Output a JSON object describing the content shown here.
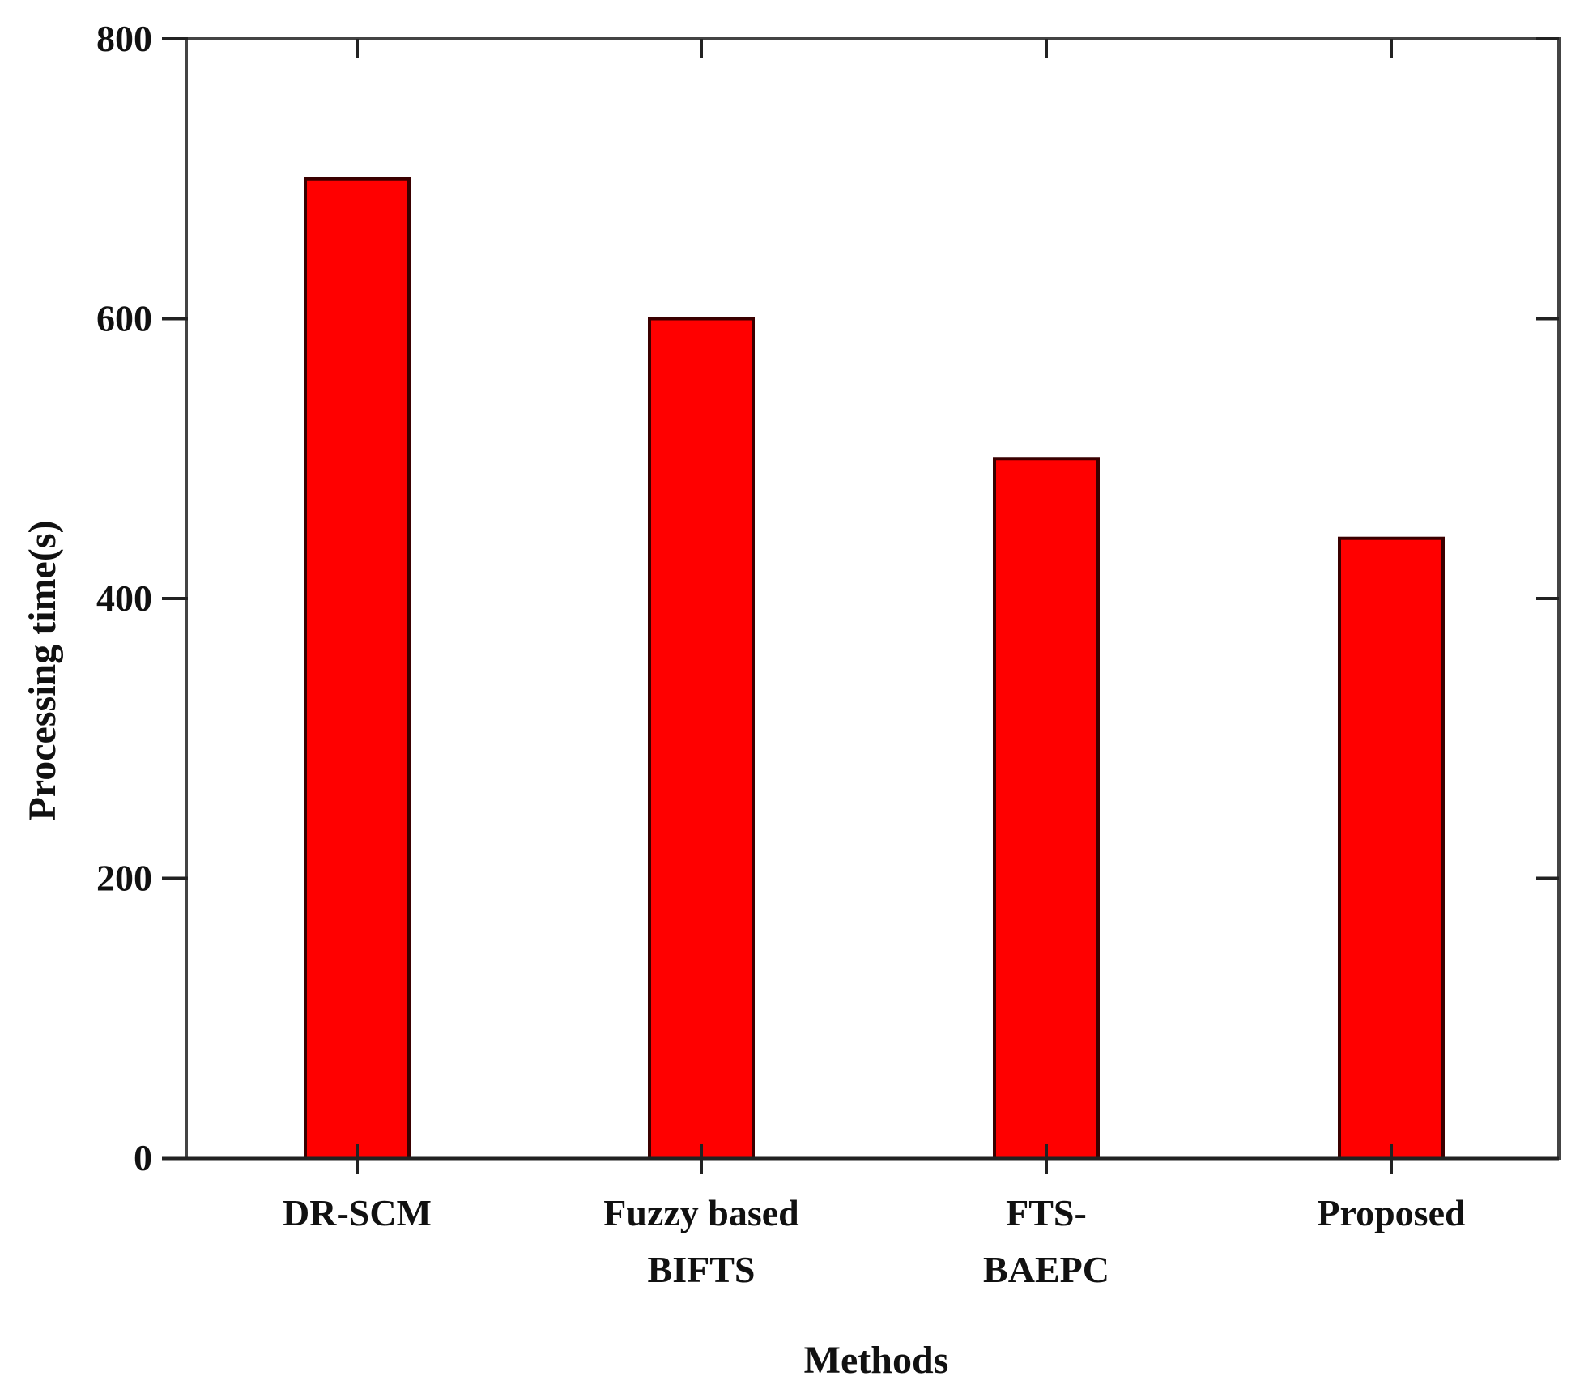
{
  "chart_data": {
    "type": "bar",
    "categories": [
      [
        "DR-SCM"
      ],
      [
        "Fuzzy based",
        "BIFTS"
      ],
      [
        "FTS-",
        "BAEPC"
      ],
      [
        "Proposed"
      ]
    ],
    "values": [
      700,
      600,
      500,
      443
    ],
    "title": "",
    "xlabel": "Methods",
    "ylabel": "Processing time(s)",
    "ylim": [
      0,
      800
    ],
    "yticks": [
      0,
      200,
      400,
      600,
      800
    ],
    "grid": false,
    "bar_color": "#ff0000",
    "bar_edge_color": "#3a0000"
  }
}
